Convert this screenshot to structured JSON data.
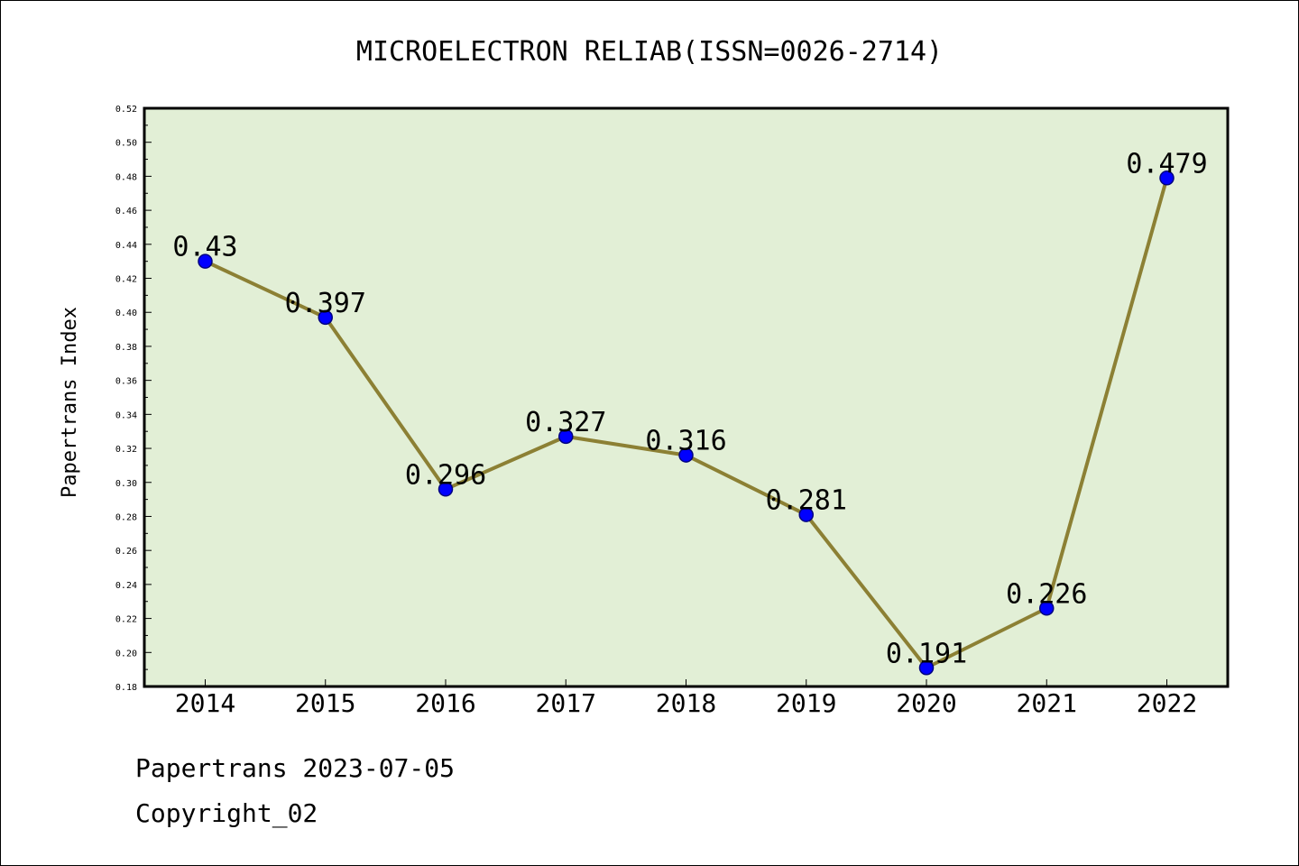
{
  "chart_data": {
    "type": "line",
    "title": "MICROELECTRON RELIAB(ISSN=0026-2714)",
    "xlabel": "",
    "ylabel": "Papertrans Index",
    "categories": [
      "2014",
      "2015",
      "2016",
      "2017",
      "2018",
      "2019",
      "2020",
      "2021",
      "2022"
    ],
    "values": [
      0.43,
      0.397,
      0.296,
      0.327,
      0.316,
      0.281,
      0.191,
      0.226,
      0.479
    ],
    "data_labels": [
      "0.43",
      "0.397",
      "0.296",
      "0.327",
      "0.316",
      "0.281",
      "0.191",
      "0.226",
      "0.479"
    ],
    "ylim": [
      0.18,
      0.52
    ],
    "yticks": [
      "0.18",
      "0.20",
      "0.22",
      "0.24",
      "0.26",
      "0.28",
      "0.30",
      "0.32",
      "0.34",
      "0.36",
      "0.38",
      "0.40",
      "0.42",
      "0.44",
      "0.46",
      "0.48",
      "0.50",
      "0.52"
    ],
    "grid": false,
    "colors": {
      "plot_background": "#e2efd6",
      "line": "#8c8034",
      "marker": "#0000ff",
      "marker_edge": "#000080"
    }
  },
  "footer": {
    "line1": "Papertrans 2023-07-05",
    "line2": "Copyright_02"
  }
}
